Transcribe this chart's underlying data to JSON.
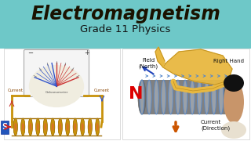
{
  "title": "Electromagnetism",
  "subtitle": "Grade 11 Physics",
  "title_color": "#1a1200",
  "subtitle_color": "#111111",
  "bg_color": "#6ec8c8",
  "panel_bg": "#ffffff",
  "N_color": "#dd0000",
  "arrow_down_color": "#cc5500",
  "solenoid_gold": "#c8920a",
  "solenoid_dark": "#a07008",
  "solenoid_red": "#cc3333",
  "solenoid_blue": "#3355cc",
  "magnet_blue": "#2255bb",
  "galv_bg": "#f0ede0",
  "hand_color": "#e8b840",
  "hand_dark": "#c09020",
  "cylinder_color": "#909090",
  "cylinder_ring": "#b0b0b0",
  "ring_line": "#5588cc",
  "person_skin": "#c8956a",
  "person_hair": "#111111",
  "right_hand_text": "Right Hand",
  "field_north_text": "Field\n(North)",
  "current_dir_text": "Current\n(Direction)",
  "current_left_text": "Current",
  "current_right_text": "Current"
}
